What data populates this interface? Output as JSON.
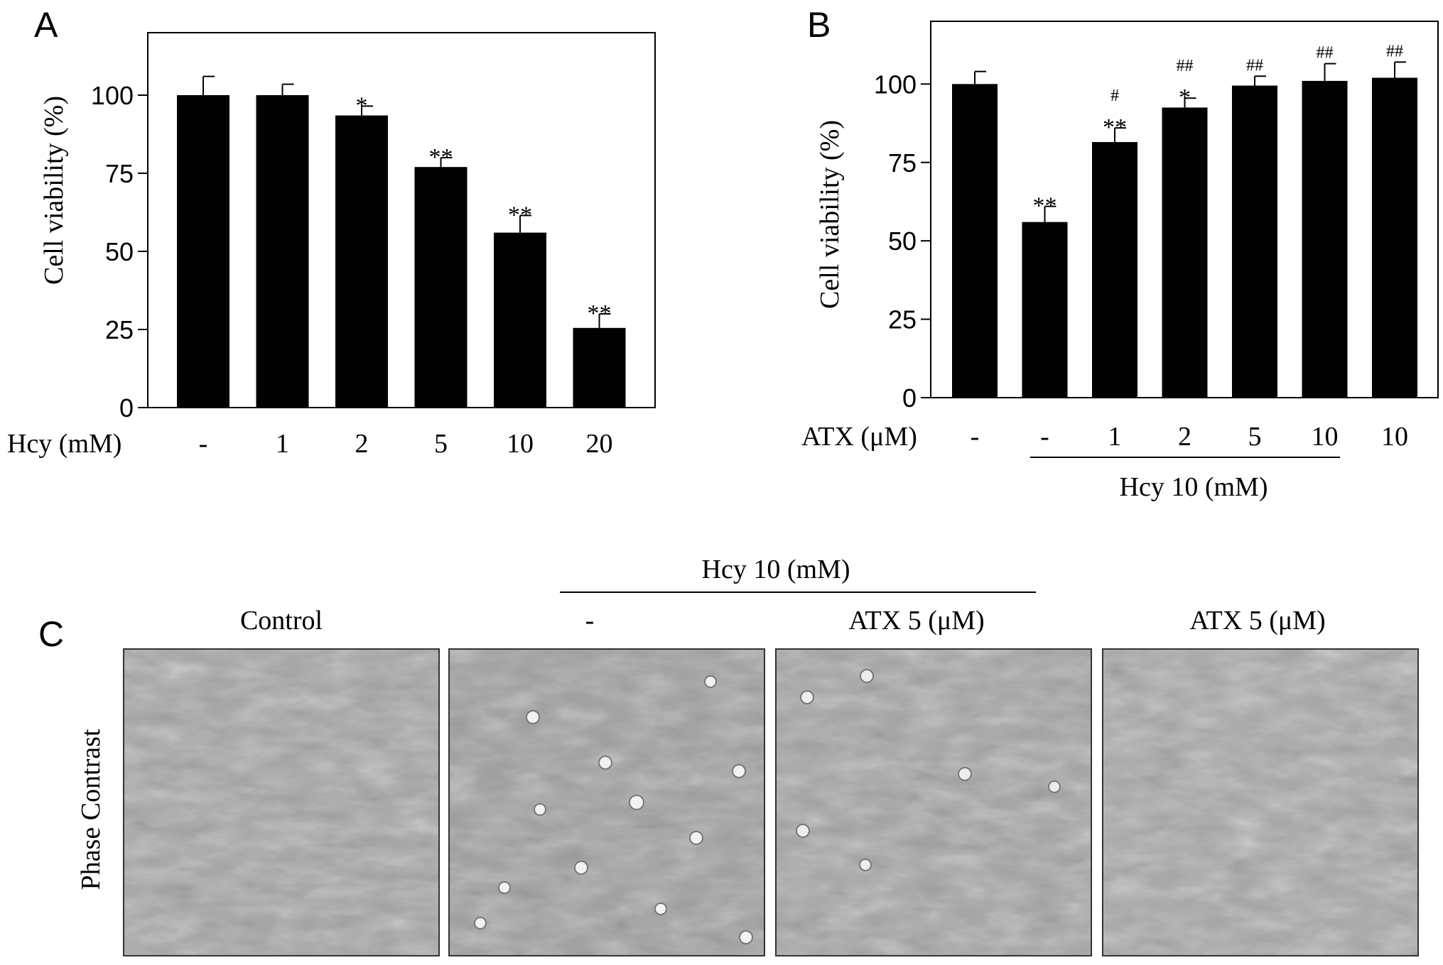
{
  "panels": {
    "a": {
      "letter": "A"
    },
    "b": {
      "letter": "B"
    },
    "c": {
      "letter": "C"
    }
  },
  "chart_data": [
    {
      "type": "bar",
      "panel": "A",
      "ylabel": "Cell viability (%)",
      "xlabel": "Hcy (mM)",
      "categories": [
        "-",
        "1",
        "2",
        "5",
        "10",
        "20"
      ],
      "values": [
        100,
        100,
        93.5,
        77,
        56,
        25.5
      ],
      "errors": [
        6,
        3.5,
        3,
        3,
        5.5,
        4.5
      ],
      "annotations": [
        [],
        [],
        [
          "*"
        ],
        [
          "**"
        ],
        [
          "**"
        ],
        [
          "**"
        ]
      ],
      "ylim": [
        0,
        120
      ],
      "yticks": [
        0,
        25,
        50,
        75,
        100
      ],
      "color": "#000000"
    },
    {
      "type": "bar",
      "panel": "B",
      "ylabel": "Cell viability (%)",
      "xlabel": "ATX (μM)",
      "categories": [
        "-",
        "-",
        "1",
        "2",
        "5",
        "10",
        "10"
      ],
      "values": [
        100,
        56,
        81.5,
        92.5,
        99.5,
        101,
        102
      ],
      "errors": [
        4,
        5,
        4.5,
        3,
        3,
        5.5,
        5
      ],
      "annotations": [
        [],
        [
          "**"
        ],
        [
          "#",
          "**"
        ],
        [
          "##",
          "*"
        ],
        [
          "##"
        ],
        [
          "##"
        ],
        [
          "##"
        ]
      ],
      "group_label": "Hcy 10 (mM)",
      "ylim": [
        0,
        120
      ],
      "yticks": [
        0,
        25,
        50,
        75,
        100
      ],
      "color": "#000000"
    }
  ],
  "micrographs": {
    "row_label": "Phase Contrast",
    "group_label": "Hcy 10 (mM)",
    "columns": [
      "Control",
      "-",
      "ATX 5 (μM)",
      "ATX 5 (μM)"
    ]
  }
}
